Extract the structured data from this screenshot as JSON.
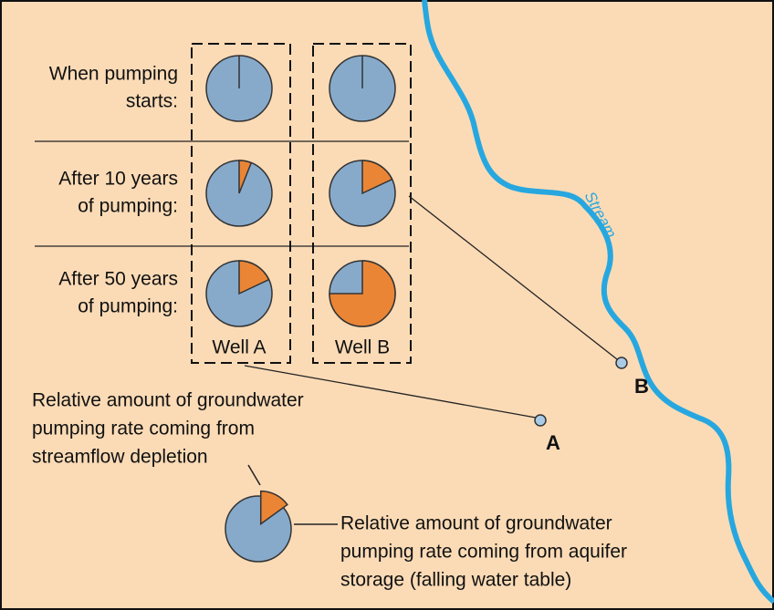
{
  "rows": [
    {
      "label": [
        "When pumping",
        "starts:"
      ],
      "pies": [
        0,
        0
      ]
    },
    {
      "label": [
        "After 10 years",
        "of pumping:"
      ],
      "pies": [
        6,
        18
      ]
    },
    {
      "label": [
        "After 50 years",
        "of pumping:"
      ],
      "pies": [
        18,
        75
      ]
    }
  ],
  "wells": [
    "Well A",
    "Well B"
  ],
  "map_labels": {
    "stream": "Stream",
    "a": "A",
    "b": "B"
  },
  "legend": {
    "streamflow_text": [
      "Relative amount of groundwater",
      "pumping rate coming from",
      "streamflow depletion"
    ],
    "storage_text": [
      "Relative amount of groundwater",
      "pumping rate coming from aquifer",
      "storage (falling water table)"
    ],
    "pie": 15
  }
}
